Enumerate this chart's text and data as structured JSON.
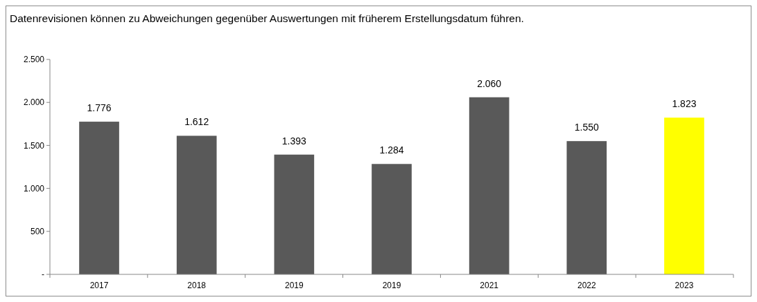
{
  "chart_data": {
    "type": "bar",
    "title": "Datenrevisionen können zu Abweichungen gegenüber Auswertungen mit früherem Erstellungsdatum führen.",
    "categories": [
      "2017",
      "2018",
      "2019",
      "2019",
      "2021",
      "2022",
      "2023"
    ],
    "values": [
      1776,
      1612,
      1393,
      1284,
      2060,
      1550,
      1823
    ],
    "colors": [
      "#595959",
      "#595959",
      "#595959",
      "#595959",
      "#595959",
      "#595959",
      "#ffff00"
    ],
    "value_labels": [
      "1.776",
      "1.612",
      "1.393",
      "1.284",
      "2.060",
      "1.550",
      "1.823"
    ],
    "ylim": [
      0,
      2500
    ],
    "yticks": [
      {
        "value": 0,
        "label": "-"
      },
      500,
      {
        "value": 1000,
        "label": "1.000"
      },
      {
        "value": 1500,
        "label": "1.500"
      },
      {
        "value": 2000,
        "label": "2.000"
      },
      {
        "value": 2500,
        "label": "2.500"
      }
    ],
    "grid": false
  }
}
